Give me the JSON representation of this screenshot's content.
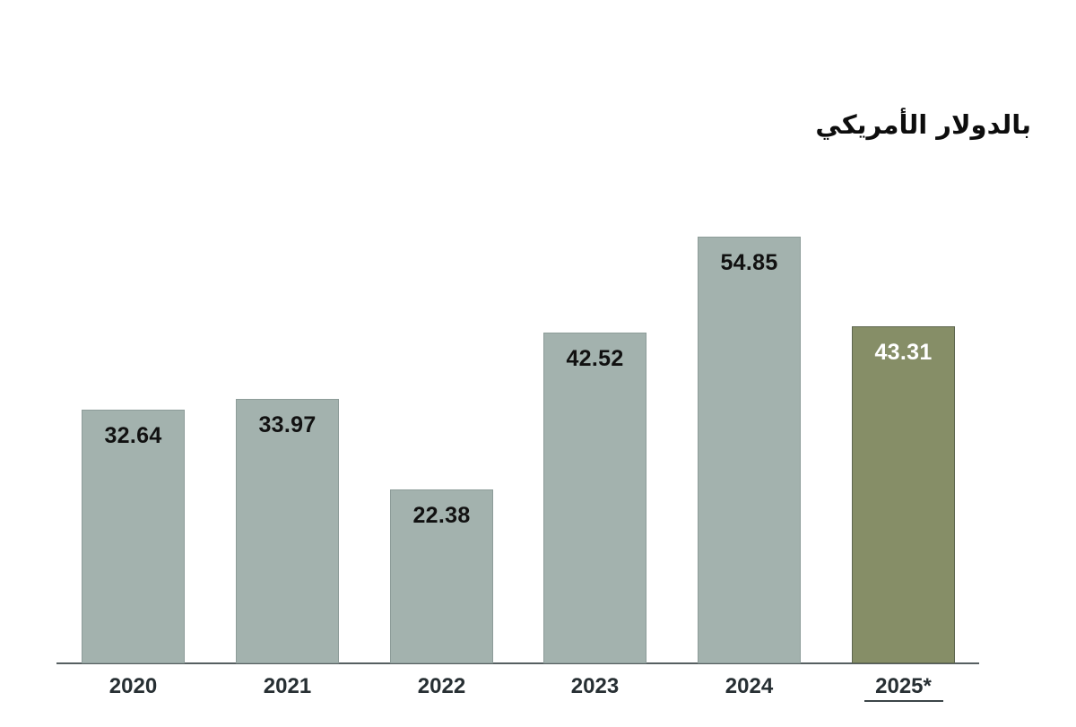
{
  "chart_data": {
    "type": "bar",
    "title": "بالدولار الأمريكي",
    "categories": [
      "2020",
      "2021",
      "2022",
      "2023",
      "2024",
      "2025*"
    ],
    "values": [
      32.64,
      33.97,
      22.38,
      42.52,
      54.85,
      43.31
    ],
    "value_labels": [
      "32.64",
      "33.97",
      "22.38",
      "42.52",
      "54.85",
      "43.31"
    ],
    "highlighted_index": 5,
    "highlighted_category_underlined": true,
    "xlabel": "",
    "ylabel": "",
    "ylim": [
      0,
      60
    ],
    "grid": false,
    "legend": "none",
    "colors": {
      "bar_fill": "#a3b2ae",
      "bar_border": "#8d9c99",
      "highlight_fill": "#868e67",
      "highlight_border": "#5e664f",
      "value_label": "#111111",
      "highlight_value_label": "#ffffff",
      "axis_line": "#565f61",
      "tick_label": "#272f33",
      "background": "#ffffff"
    }
  }
}
